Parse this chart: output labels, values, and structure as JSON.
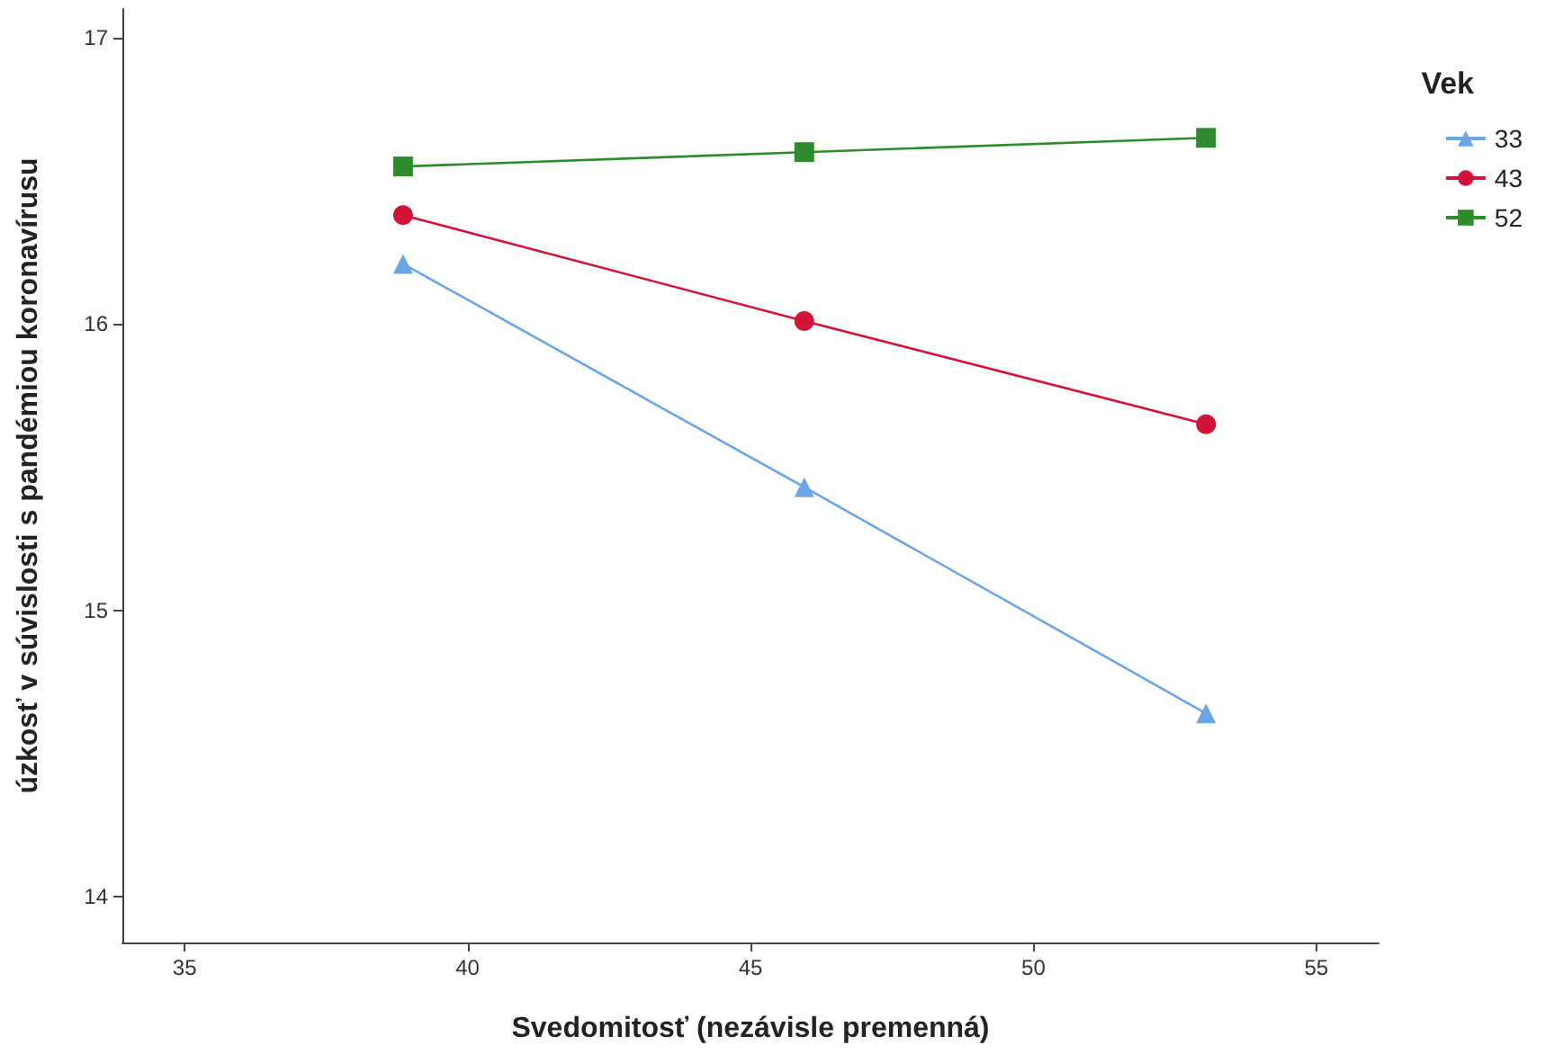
{
  "chart_data": {
    "type": "line",
    "xlabel": "Svedomitosť (nezávisle premenná)",
    "ylabel": "úzkosť v súvislosti s pandémiou koronavírusu",
    "legend_title": "Vek",
    "legend": "right",
    "grid": false,
    "x": [
      38.86,
      45.95,
      53.05
    ],
    "series": [
      {
        "name": "33",
        "color": "#6aa5e6",
        "marker": "triangle",
        "values": [
          16.21,
          15.43,
          14.64
        ]
      },
      {
        "name": "43",
        "color": "#d2143a",
        "marker": "circle",
        "values": [
          16.38,
          16.01,
          15.65
        ]
      },
      {
        "name": "52",
        "color": "#2e8b2e",
        "marker": "square",
        "values": [
          16.55,
          16.6,
          16.65
        ]
      }
    ],
    "xlim": [
      33.9,
      56.1
    ],
    "xticks": [
      35,
      40,
      45,
      50,
      55
    ],
    "ylim": [
      13.84,
      17.1
    ],
    "yticks": [
      14,
      15,
      16,
      17
    ]
  }
}
